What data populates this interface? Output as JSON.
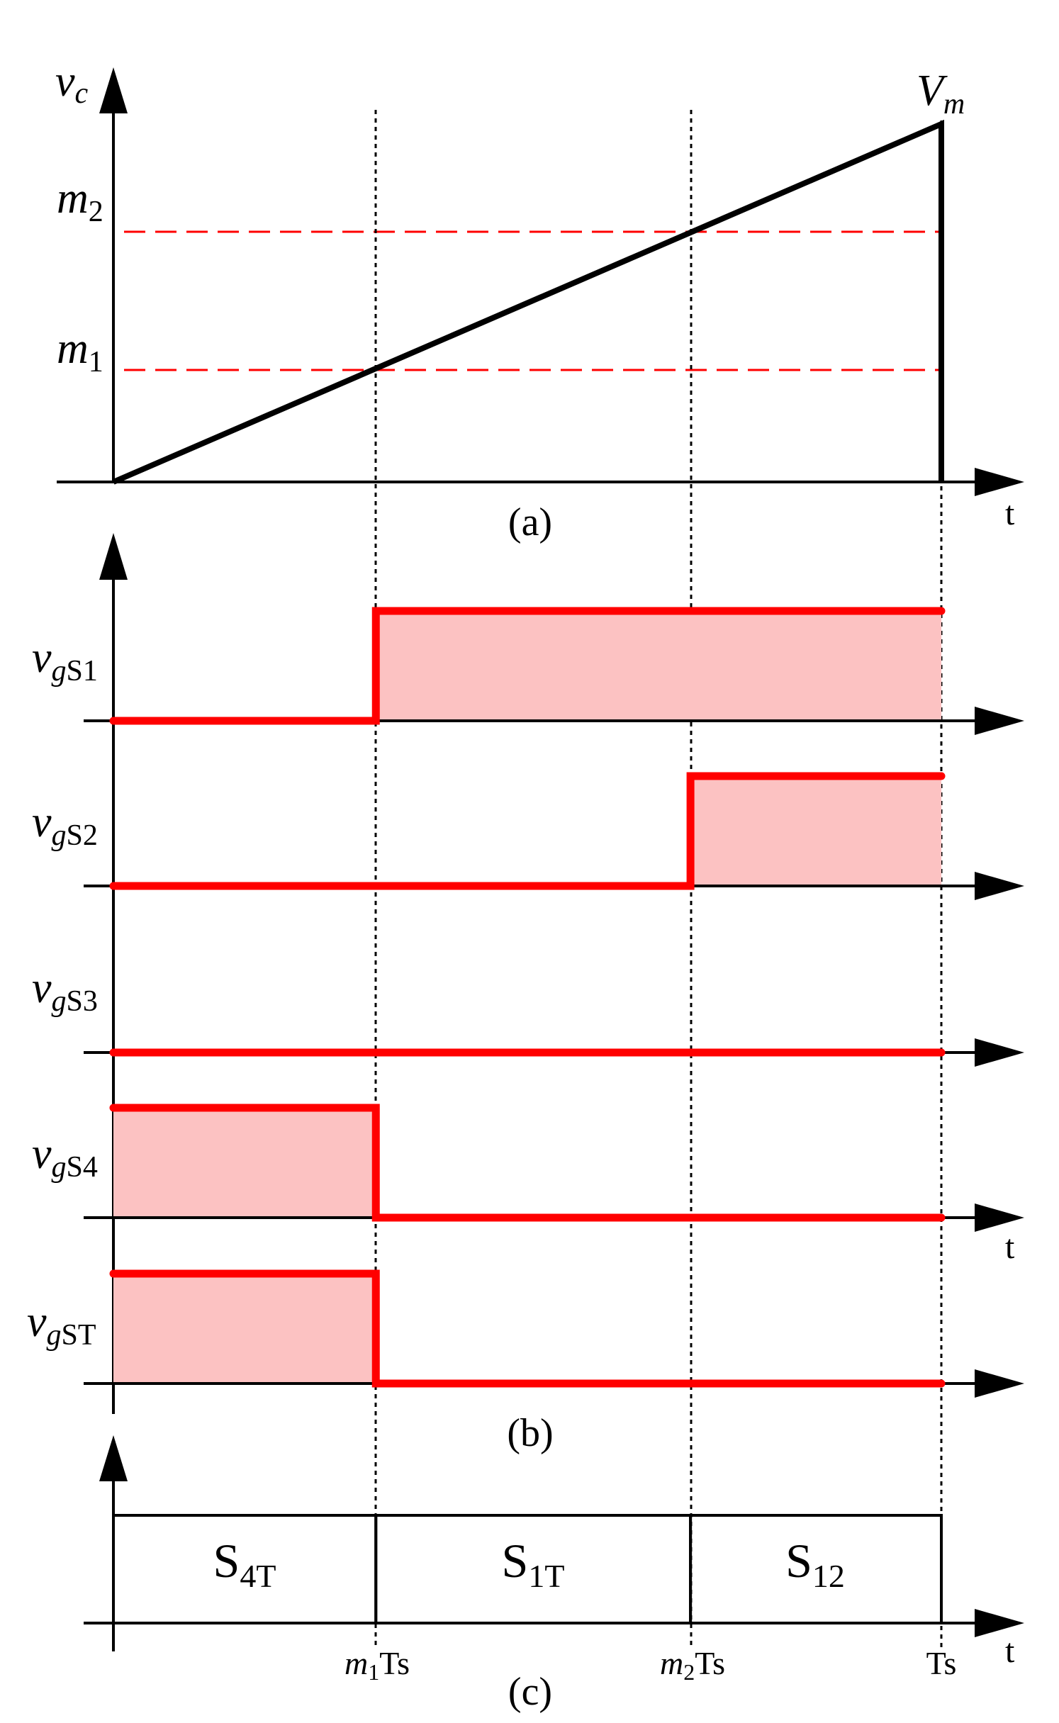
{
  "panel_a": {
    "caption": "(a)",
    "y_symbol": "v",
    "y_sub": "c",
    "peak_symbol": "V",
    "peak_sub": "m",
    "m2_symbol": "m",
    "m2_sub": "2",
    "m1_symbol": "m",
    "m1_sub": "1",
    "t_label": "t",
    "levels": {
      "m1": 0.317,
      "m2": 0.697,
      "Vm": 1.0
    },
    "crossings": {
      "m1": 0.317,
      "m2": 0.697
    }
  },
  "panel_b": {
    "caption": "(b)",
    "t_label": "t",
    "signals": [
      {
        "sym": "v",
        "sub1": "g",
        "sub2": "S1",
        "segments": [
          [
            0,
            0.317,
            0
          ],
          [
            0.317,
            1,
            1
          ]
        ]
      },
      {
        "sym": "v",
        "sub1": "g",
        "sub2": "S2",
        "segments": [
          [
            0,
            0.697,
            0
          ],
          [
            0.697,
            1,
            1
          ]
        ]
      },
      {
        "sym": "v",
        "sub1": "g",
        "sub2": "S3",
        "segments": [
          [
            0,
            1,
            0
          ]
        ]
      },
      {
        "sym": "v",
        "sub1": "g",
        "sub2": "S4",
        "segments": [
          [
            0,
            0.317,
            1
          ],
          [
            0.317,
            1,
            0
          ]
        ]
      },
      {
        "sym": "v",
        "sub1": "g",
        "sub2": "ST",
        "segments": [
          [
            0,
            0.317,
            1
          ],
          [
            0.317,
            1,
            0
          ]
        ]
      }
    ]
  },
  "panel_c": {
    "caption": "(c)",
    "t_label": "t",
    "states": [
      {
        "main": "S",
        "sub": "4T",
        "from": 0,
        "to": 0.317
      },
      {
        "main": "S",
        "sub": "1T",
        "from": 0.317,
        "to": 0.697
      },
      {
        "main": "S",
        "sub": "12",
        "from": 0.697,
        "to": 1
      }
    ],
    "ticks": [
      {
        "pre": "m",
        "sub": "1",
        "post": "Ts"
      },
      {
        "pre": "m",
        "sub": "2",
        "post": "Ts"
      },
      {
        "pre": "",
        "sub": "",
        "post": "Ts"
      }
    ]
  },
  "colors": {
    "signal": "#ff0000",
    "fill": "#fcc2c2",
    "ink": "#000000",
    "ref": "#ff0000"
  }
}
